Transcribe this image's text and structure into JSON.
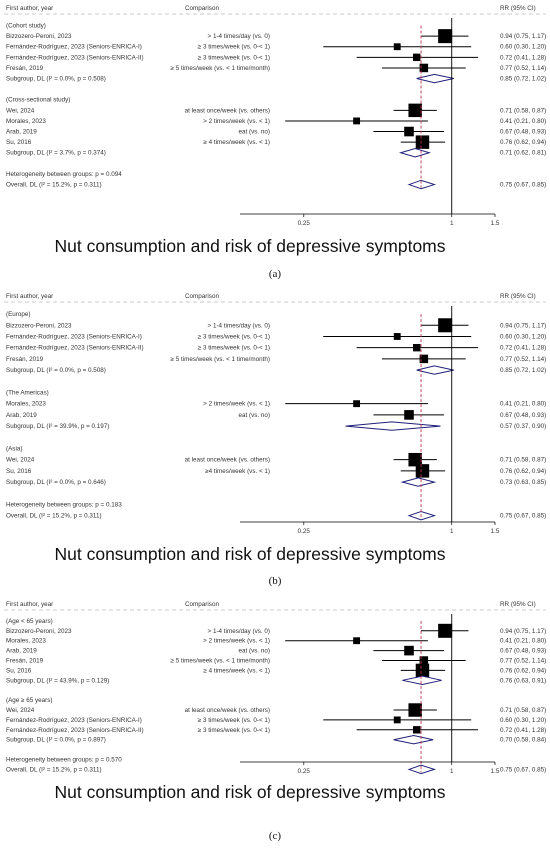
{
  "chart_data": [
    {
      "type": "forest",
      "panel_label": "(a)",
      "title": "Nut consumption and risk of depressive symptoms",
      "header": {
        "col1": "First author, year",
        "col2": "Comparison",
        "col3": "RR (95% CI)"
      },
      "x_scale": "log",
      "xlim": [
        0.2,
        1.5
      ],
      "x_ticks": [
        "0.25",
        "1",
        "1.5"
      ],
      "null_line": 1,
      "overall_estimate_line": 0.75,
      "groups": [
        {
          "label": "(Cohort study)",
          "rows": [
            {
              "study": "Bizzozero-Peroni, 2023",
              "comparison": "> 1-4 times/day (vs. 0)",
              "rr": 0.94,
              "lo": 0.75,
              "hi": 1.17,
              "ci": "0.94 (0.75, 1.17)",
              "weight": 1.0
            },
            {
              "study": "Fernández-Rodríguez, 2023 (Seniors-ENRICA-I)",
              "comparison": "≥ 3 times/week (vs. 0-< 1)",
              "rr": 0.6,
              "lo": 0.3,
              "hi": 1.2,
              "ci": "0.60 (0.30, 1.20)",
              "weight": 0.35
            },
            {
              "study": "Fernández-Rodríguez, 2023 (Seniors-ENRICA-II)",
              "comparison": "≥ 3 times/week (vs. 0-< 1)",
              "rr": 0.72,
              "lo": 0.41,
              "hi": 1.28,
              "ci": "0.72 (0.41, 1.28)",
              "weight": 0.4
            },
            {
              "study": "Fresán, 2019",
              "comparison": "≥ 5 times/week (vs. < 1 time/month)",
              "rr": 0.77,
              "lo": 0.52,
              "hi": 1.14,
              "ci": "0.77 (0.52, 1.14)",
              "weight": 0.5
            }
          ],
          "subgroup": {
            "label": "Subgroup, DL (I² = 0.0%, p = 0.508)",
            "rr": 0.85,
            "lo": 0.72,
            "hi": 1.02,
            "ci": "0.85 (0.72, 1.02)"
          }
        },
        {
          "label": "(Cross-sectional study)",
          "rows": [
            {
              "study": "Wei, 2024",
              "comparison": "at least once/week (vs. others)",
              "rr": 0.71,
              "lo": 0.58,
              "hi": 0.87,
              "ci": "0.71 (0.58, 0.87)",
              "weight": 0.95
            },
            {
              "study": "Morales, 2023",
              "comparison": "> 2 times/week (vs. < 1)",
              "rr": 0.41,
              "lo": 0.21,
              "hi": 0.8,
              "ci": "0.41 (0.21, 0.80)",
              "weight": 0.35
            },
            {
              "study": "Arab, 2019",
              "comparison": "eat (vs. no)",
              "rr": 0.67,
              "lo": 0.48,
              "hi": 0.93,
              "ci": "0.67 (0.48, 0.93)",
              "weight": 0.6
            },
            {
              "study": "Su, 2016",
              "comparison": "≥ 4 times/week (vs. < 1)",
              "rr": 0.76,
              "lo": 0.62,
              "hi": 0.94,
              "ci": "0.76 (0.62, 0.94)",
              "weight": 0.95
            }
          ],
          "subgroup": {
            "label": "Subgroup, DL (I² = 3.7%, p = 0.374)",
            "rr": 0.71,
            "lo": 0.62,
            "hi": 0.81,
            "ci": "0.71 (0.62, 0.81)"
          }
        }
      ],
      "heterogeneity": "Heterogeneity between groups: p = 0.094",
      "overall": {
        "label": "Overall, DL (I² = 15.2%, p = 0.311)",
        "rr": 0.75,
        "lo": 0.67,
        "hi": 0.85,
        "ci": "0.75 (0.67, 0.85)"
      }
    },
    {
      "type": "forest",
      "panel_label": "(b)",
      "title": "Nut consumption and risk of depressive symptoms",
      "header": {
        "col1": "First author, year",
        "col2": "Comparison",
        "col3": "RR (95% CI)"
      },
      "x_scale": "log",
      "xlim": [
        0.2,
        1.5
      ],
      "x_ticks": [
        "0.25",
        "1",
        "1.5"
      ],
      "null_line": 1,
      "overall_estimate_line": 0.75,
      "groups": [
        {
          "label": "(Europe)",
          "rows": [
            {
              "study": "Bizzozero-Peroni, 2023",
              "comparison": "> 1-4 times/day (vs. 0)",
              "rr": 0.94,
              "lo": 0.75,
              "hi": 1.17,
              "ci": "0.94 (0.75, 1.17)",
              "weight": 1.0
            },
            {
              "study": "Fernández-Rodríguez, 2023 (Seniors-ENRICA-I)",
              "comparison": "≥ 3 times/week (vs. 0-< 1)",
              "rr": 0.6,
              "lo": 0.3,
              "hi": 1.2,
              "ci": "0.60 (0.30, 1.20)",
              "weight": 0.35
            },
            {
              "study": "Fernández-Rodríguez, 2023 (Seniors-ENRICA-II)",
              "comparison": "≥ 3 times/week (vs. 0-< 1)",
              "rr": 0.72,
              "lo": 0.41,
              "hi": 1.28,
              "ci": "0.72 (0.41, 1.28)",
              "weight": 0.4
            },
            {
              "study": "Fresán, 2019",
              "comparison": "≥ 5 times/week (vs. < 1 time/month)",
              "rr": 0.77,
              "lo": 0.52,
              "hi": 1.14,
              "ci": "0.77 (0.52, 1.14)",
              "weight": 0.5
            }
          ],
          "subgroup": {
            "label": "Subgroup, DL (I² = 0.0%, p = 0.508)",
            "rr": 0.85,
            "lo": 0.72,
            "hi": 1.02,
            "ci": "0.85 (0.72, 1.02)"
          }
        },
        {
          "label": "(The Americas)",
          "rows": [
            {
              "study": "Morales, 2023",
              "comparison": "> 2 times/week (vs. < 1)",
              "rr": 0.41,
              "lo": 0.21,
              "hi": 0.8,
              "ci": "0.41 (0.21, 0.80)",
              "weight": 0.35
            },
            {
              "study": "Arab, 2019",
              "comparison": "eat (vs. no)",
              "rr": 0.67,
              "lo": 0.48,
              "hi": 0.93,
              "ci": "0.67 (0.48, 0.93)",
              "weight": 0.6
            }
          ],
          "subgroup": {
            "label": "Subgroup, DL (I² = 39.9%, p = 0.197)",
            "rr": 0.57,
            "lo": 0.37,
            "hi": 0.9,
            "ci": "0.57 (0.37, 0.90)"
          }
        },
        {
          "label": "(Asia)",
          "rows": [
            {
              "study": "Wei, 2024",
              "comparison": "at least once/week (vs. others)",
              "rr": 0.71,
              "lo": 0.58,
              "hi": 0.87,
              "ci": "0.71 (0.58, 0.87)",
              "weight": 0.95
            },
            {
              "study": "Su, 2016",
              "comparison": "≥4 times/week (vs. < 1)",
              "rr": 0.76,
              "lo": 0.62,
              "hi": 0.94,
              "ci": "0.76 (0.62, 0.94)",
              "weight": 0.95
            }
          ],
          "subgroup": {
            "label": "Subgroup, DL (I² = 0.0%, p = 0.646)",
            "rr": 0.73,
            "lo": 0.63,
            "hi": 0.85,
            "ci": "0.73 (0.63, 0.85)"
          }
        }
      ],
      "heterogeneity": "Heterogeneity between groups: p = 0.183",
      "overall": {
        "label": "Overall, DL (I² = 15.2%, p = 0.311)",
        "rr": 0.75,
        "lo": 0.67,
        "hi": 0.85,
        "ci": "0.75 (0.67, 0.85)"
      }
    },
    {
      "type": "forest",
      "panel_label": "(c)",
      "title": "Nut consumption and risk of depressive symptoms",
      "header": {
        "col1": "First author, year",
        "col2": "Comparison",
        "col3": "RR (95% CI)"
      },
      "x_scale": "log",
      "xlim": [
        0.2,
        1.5
      ],
      "x_ticks": [
        "0.25",
        "1",
        "1.5"
      ],
      "null_line": 1,
      "overall_estimate_line": 0.75,
      "groups": [
        {
          "label": "(Age < 65 years)",
          "rows": [
            {
              "study": "Bizzozero-Peroni, 2023",
              "comparison": "> 1-4 times/day (vs. 0)",
              "rr": 0.94,
              "lo": 0.75,
              "hi": 1.17,
              "ci": "0.94 (0.75, 1.17)",
              "weight": 1.0
            },
            {
              "study": "Morales, 2023",
              "comparison": "> 2 times/week (vs. < 1)",
              "rr": 0.41,
              "lo": 0.21,
              "hi": 0.8,
              "ci": "0.41 (0.21, 0.80)",
              "weight": 0.35
            },
            {
              "study": "Arab, 2019",
              "comparison": "eat (vs. no)",
              "rr": 0.67,
              "lo": 0.48,
              "hi": 0.93,
              "ci": "0.67 (0.48, 0.93)",
              "weight": 0.6
            },
            {
              "study": "Fresán, 2019",
              "comparison": "≥ 5 times/week (vs. < 1 time/month)",
              "rr": 0.77,
              "lo": 0.52,
              "hi": 1.14,
              "ci": "0.77 (0.52, 1.14)",
              "weight": 0.5
            },
            {
              "study": "Su, 2016",
              "comparison": "≥ 4 times/week (vs. < 1)",
              "rr": 0.76,
              "lo": 0.62,
              "hi": 0.94,
              "ci": "0.76 (0.62, 0.94)",
              "weight": 0.95
            }
          ],
          "subgroup": {
            "label": "Subgroup, DL (I² = 43.9%, p = 0.129)",
            "rr": 0.76,
            "lo": 0.63,
            "hi": 0.91,
            "ci": "0.76 (0.63, 0.91)"
          }
        },
        {
          "label": "(Age ≥ 65 years)",
          "rows": [
            {
              "study": "Wei, 2024",
              "comparison": "at least once/week (vs. others)",
              "rr": 0.71,
              "lo": 0.58,
              "hi": 0.87,
              "ci": "0.71 (0.58, 0.87)",
              "weight": 0.95
            },
            {
              "study": "Fernández-Rodríguez, 2023 (Seniors-ENRICA-I)",
              "comparison": "≥ 3 times/week (vs. 0-< 1)",
              "rr": 0.6,
              "lo": 0.3,
              "hi": 1.2,
              "ci": "0.60 (0.30, 1.20)",
              "weight": 0.35
            },
            {
              "study": "Fernández-Rodríguez, 2023 (Seniors-ENRICA-II)",
              "comparison": "≥ 3 times/week (vs. 0-< 1)",
              "rr": 0.72,
              "lo": 0.41,
              "hi": 1.28,
              "ci": "0.72 (0.41, 1.28)",
              "weight": 0.4
            }
          ],
          "subgroup": {
            "label": "Subgroup, DL (I² = 0.0%, p = 0.897)",
            "rr": 0.7,
            "lo": 0.58,
            "hi": 0.84,
            "ci": "0.70 (0.58, 0.84)"
          }
        }
      ],
      "heterogeneity": "Heterogeneity between groups: p = 0.570",
      "overall": {
        "label": "Overall, DL (I² = 15.2%, p = 0.311)",
        "rr": 0.75,
        "lo": 0.67,
        "hi": 0.85,
        "ci": "0.75 (0.67, 0.85)"
      }
    }
  ],
  "colors": {
    "square": "#000000",
    "diamond": "#1f1f7a",
    "null_line": "#000000",
    "overall_line": "#c0334d",
    "text": "#333333"
  }
}
